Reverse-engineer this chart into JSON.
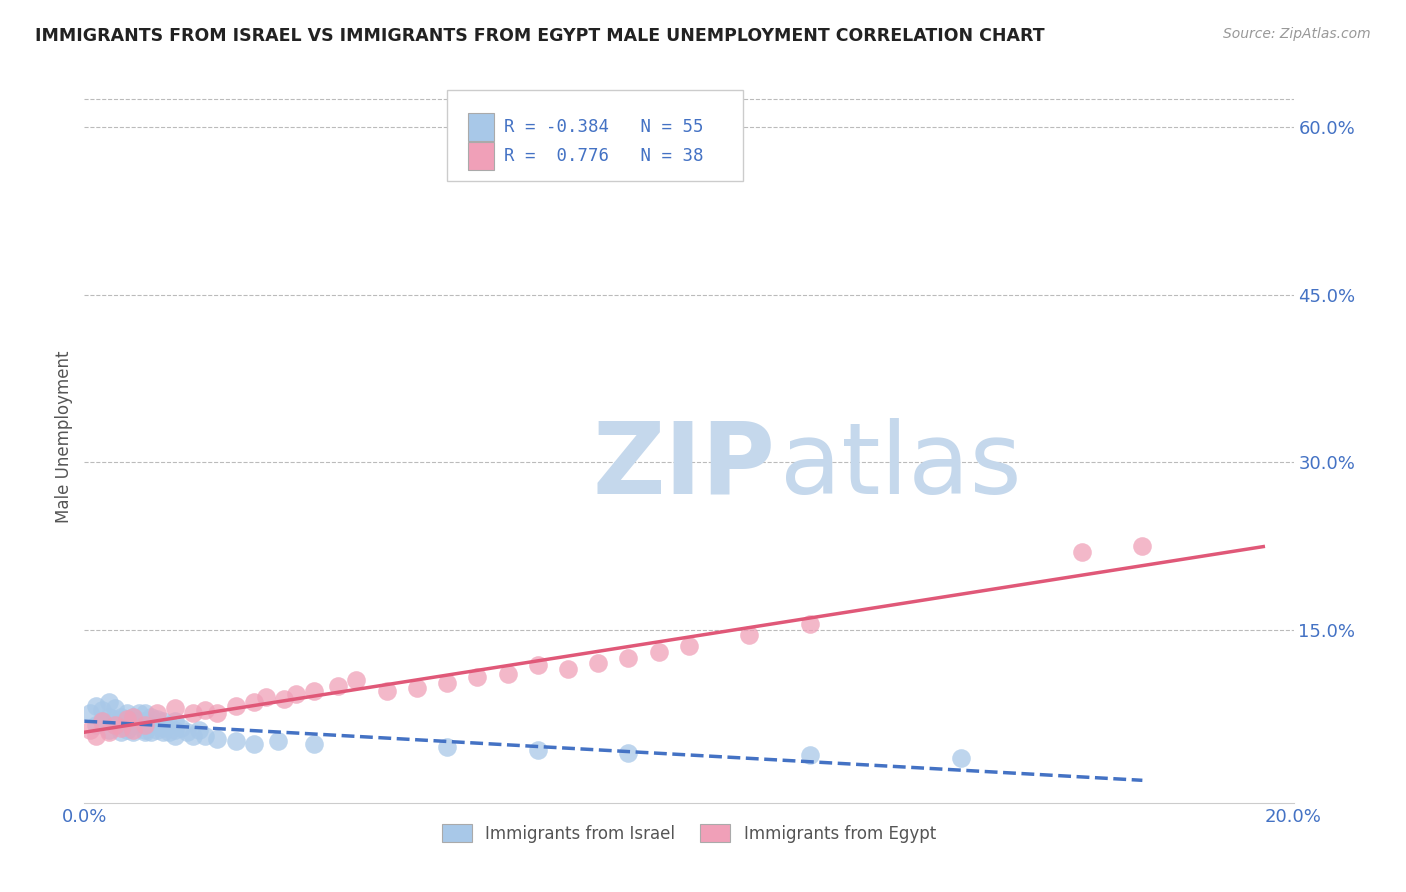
{
  "title": "IMMIGRANTS FROM ISRAEL VS IMMIGRANTS FROM EGYPT MALE UNEMPLOYMENT CORRELATION CHART",
  "source_text": "Source: ZipAtlas.com",
  "ylabel": "Male Unemployment",
  "xlim": [
    0.0,
    0.2
  ],
  "ylim": [
    -0.005,
    0.65
  ],
  "yticks_right": [
    0.15,
    0.3,
    0.45,
    0.6
  ],
  "ytick_labels_right": [
    "15.0%",
    "30.0%",
    "45.0%",
    "60.0%"
  ],
  "israel_color": "#a8c8e8",
  "egypt_color": "#f0a0b8",
  "israel_line_color": "#4472c4",
  "egypt_line_color": "#e05878",
  "israel_R": -0.384,
  "israel_N": 55,
  "egypt_R": 0.776,
  "egypt_N": 38,
  "grid_color": "#bbbbbb",
  "background_color": "#ffffff",
  "title_color": "#222222",
  "axis_color": "#4472c4",
  "watermark_zip": "ZIP",
  "watermark_atlas": "atlas",
  "watermark_color_zip": "#c5d8ec",
  "watermark_color_atlas": "#c5d8ec",
  "legend_israel_label": "Immigrants from Israel",
  "legend_egypt_label": "Immigrants from Egypt",
  "israel_x": [
    0.001,
    0.002,
    0.002,
    0.003,
    0.003,
    0.004,
    0.004,
    0.004,
    0.005,
    0.005,
    0.005,
    0.006,
    0.006,
    0.006,
    0.007,
    0.007,
    0.007,
    0.007,
    0.008,
    0.008,
    0.008,
    0.009,
    0.009,
    0.01,
    0.01,
    0.01,
    0.01,
    0.011,
    0.011,
    0.011,
    0.012,
    0.012,
    0.013,
    0.013,
    0.013,
    0.014,
    0.014,
    0.015,
    0.015,
    0.015,
    0.016,
    0.017,
    0.018,
    0.019,
    0.02,
    0.022,
    0.025,
    0.028,
    0.032,
    0.038,
    0.06,
    0.075,
    0.09,
    0.12,
    0.145
  ],
  "israel_y": [
    0.075,
    0.082,
    0.065,
    0.078,
    0.068,
    0.072,
    0.06,
    0.085,
    0.07,
    0.065,
    0.08,
    0.058,
    0.072,
    0.065,
    0.07,
    0.06,
    0.075,
    0.068,
    0.065,
    0.072,
    0.058,
    0.068,
    0.075,
    0.06,
    0.068,
    0.075,
    0.058,
    0.065,
    0.058,
    0.072,
    0.06,
    0.07,
    0.062,
    0.068,
    0.058,
    0.065,
    0.058,
    0.06,
    0.068,
    0.055,
    0.062,
    0.058,
    0.055,
    0.06,
    0.055,
    0.052,
    0.05,
    0.048,
    0.05,
    0.048,
    0.045,
    0.042,
    0.04,
    0.038,
    0.035
  ],
  "egypt_x": [
    0.001,
    0.002,
    0.003,
    0.004,
    0.005,
    0.006,
    0.007,
    0.008,
    0.008,
    0.01,
    0.012,
    0.015,
    0.018,
    0.02,
    0.022,
    0.025,
    0.028,
    0.03,
    0.033,
    0.035,
    0.038,
    0.042,
    0.045,
    0.05,
    0.055,
    0.06,
    0.065,
    0.07,
    0.075,
    0.08,
    0.085,
    0.09,
    0.095,
    0.1,
    0.11,
    0.12,
    0.165,
    0.175
  ],
  "egypt_y": [
    0.06,
    0.055,
    0.068,
    0.058,
    0.065,
    0.062,
    0.07,
    0.06,
    0.072,
    0.065,
    0.075,
    0.08,
    0.075,
    0.078,
    0.075,
    0.082,
    0.085,
    0.09,
    0.088,
    0.092,
    0.095,
    0.1,
    0.105,
    0.095,
    0.098,
    0.102,
    0.108,
    0.11,
    0.118,
    0.115,
    0.12,
    0.125,
    0.13,
    0.135,
    0.145,
    0.155,
    0.22,
    0.225
  ]
}
